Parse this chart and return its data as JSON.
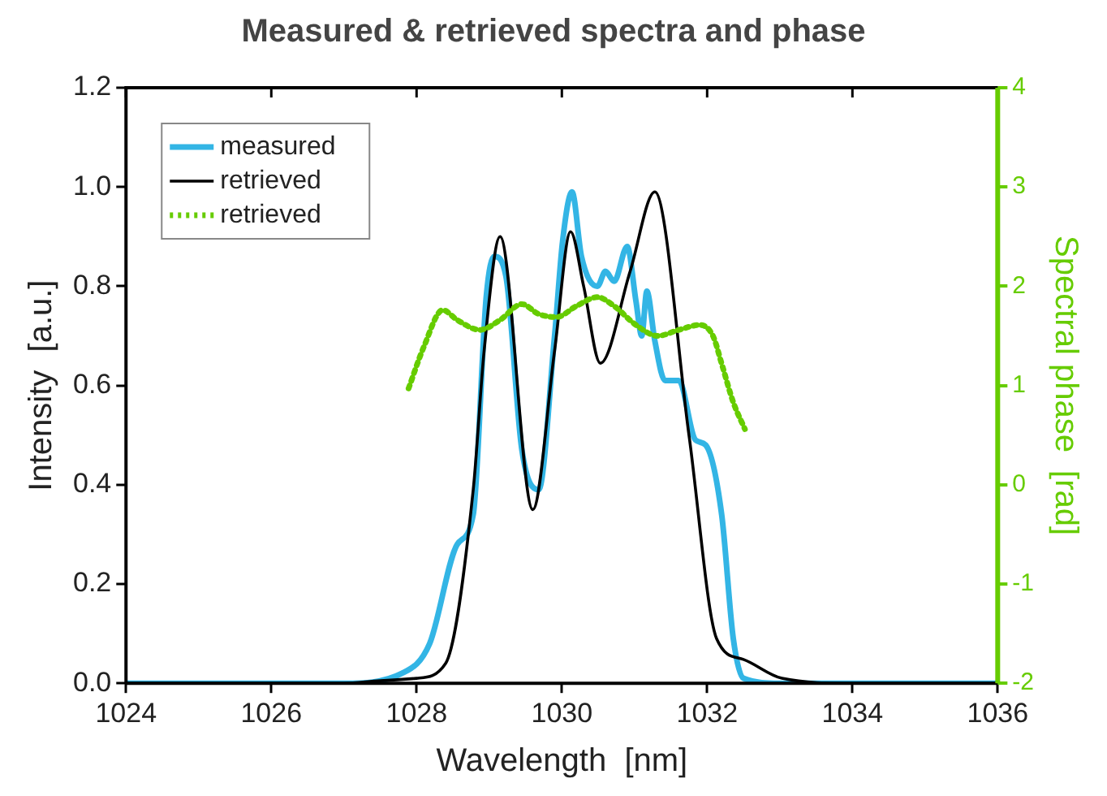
{
  "chart_data": {
    "type": "line",
    "title": "Measured & retrieved spectra and phase",
    "xlabel": "Wavelength  [nm]",
    "ylabel": "Intensity  [a.u.]",
    "y2label": "Spectral phase  [rad]",
    "xlim": [
      1024,
      1036
    ],
    "xticks": [
      1024,
      1026,
      1028,
      1030,
      1032,
      1034,
      1036
    ],
    "ylim": [
      0,
      1.2
    ],
    "yticks": [
      {
        "value": 0,
        "label": "0.0"
      },
      {
        "value": 0.2,
        "label": "0.2"
      },
      {
        "value": 0.4,
        "label": "0.4"
      },
      {
        "value": 0.6,
        "label": "0.6"
      },
      {
        "value": 0.8,
        "label": "0.8"
      },
      {
        "value": 1,
        "label": "1.0"
      },
      {
        "value": 1.2,
        "label": "1.2"
      }
    ],
    "y2lim": [
      -2,
      4
    ],
    "y2ticks": [
      -2,
      -1,
      0,
      1,
      2,
      3,
      4
    ],
    "legend": "top left",
    "grid": false,
    "marker": "none",
    "series": [
      {
        "name": "measured",
        "color": "#33b5e5",
        "line_style": "solid",
        "x": [
          1024,
          1027,
          1027.8,
          1028.18,
          1028.56,
          1028.78,
          1028.96,
          1029.07,
          1029.23,
          1029.45,
          1029.68,
          1029.9,
          1030.01,
          1030.14,
          1030.27,
          1030.49,
          1030.6,
          1030.72,
          1030.9,
          1031.02,
          1031.1,
          1031.17,
          1031.28,
          1031.42,
          1031.61,
          1031.84,
          1031.98,
          1032.2,
          1032.36,
          1032.5,
          1033,
          1036
        ],
        "values": [
          0,
          0,
          0.02,
          0.08,
          0.28,
          0.34,
          0.78,
          0.86,
          0.82,
          0.47,
          0.39,
          0.7,
          0.89,
          0.99,
          0.86,
          0.8,
          0.83,
          0.81,
          0.88,
          0.77,
          0.7,
          0.79,
          0.69,
          0.61,
          0.61,
          0.49,
          0.48,
          0.34,
          0.09,
          0.01,
          0,
          0
        ]
      },
      {
        "name": "retrieved",
        "color": "#000000",
        "line_style": "solid",
        "x": [
          1024,
          1027,
          1027.5,
          1028,
          1028.4,
          1028.78,
          1028.93,
          1029.15,
          1029.6,
          1029.9,
          1030.12,
          1030.3,
          1030.53,
          1030.94,
          1031.28,
          1031.75,
          1032.13,
          1032.5,
          1033.03,
          1034,
          1036
        ],
        "values": [
          0,
          0,
          0.005,
          0.01,
          0.04,
          0.39,
          0.67,
          0.9,
          0.35,
          0.67,
          0.91,
          0.8,
          0.645,
          0.83,
          0.99,
          0.5,
          0.09,
          0.048,
          0.01,
          0,
          0
        ]
      },
      {
        "name": "retrieved",
        "color": "#66cc00",
        "axis": "y2",
        "line_style": "dotted",
        "x": [
          1027.89,
          1028.1,
          1028.36,
          1028.56,
          1028.87,
          1029.15,
          1029.45,
          1029.68,
          1029.93,
          1030.2,
          1030.49,
          1030.72,
          1031.02,
          1031.32,
          1031.61,
          1031.9,
          1032.08,
          1032.2,
          1032.36,
          1032.52
        ],
        "values": [
          0.97,
          1.39,
          1.76,
          1.66,
          1.56,
          1.66,
          1.82,
          1.72,
          1.69,
          1.8,
          1.89,
          1.8,
          1.61,
          1.5,
          1.56,
          1.61,
          1.5,
          1.22,
          0.83,
          0.56
        ]
      }
    ]
  }
}
